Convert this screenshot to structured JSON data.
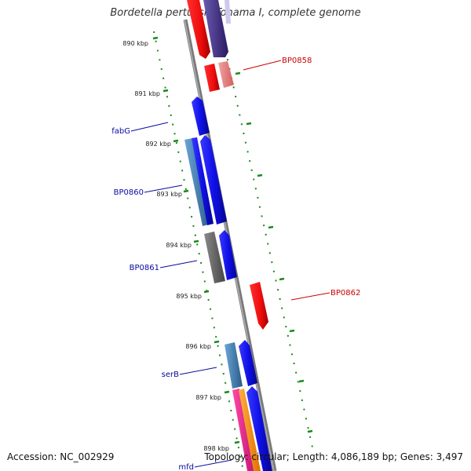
{
  "title": "Bordetella pertussis Tohama I, complete genome",
  "footer": {
    "accession": "Accession: NC_002929",
    "summary": "Topology: circular; Length: 4,086,189 bp; Genes: 3,497"
  },
  "ticks": [
    "890 kbp",
    "891 kbp",
    "892 kbp",
    "893 kbp",
    "894 kbp",
    "895 kbp",
    "896 kbp",
    "897 kbp",
    "898 kbp"
  ],
  "gene_labels": [
    "BP0858",
    "fabG",
    "BP0860",
    "BP0861",
    "BP0862",
    "serB",
    "mfd"
  ],
  "colors": {
    "backbone": "#8c8c8c",
    "tick_marks": "#1a8a1a",
    "forward_cds": "#1010e8",
    "reverse_cds": "#f01010",
    "pseudo_reverse": "#e88888",
    "steelblue_cds": "#4a86b8",
    "gray_cds": "#666666",
    "dark_purple_cds": "#4a3a8a",
    "label_blue": "#0a0aa0",
    "label_red": "#cc0000"
  }
}
